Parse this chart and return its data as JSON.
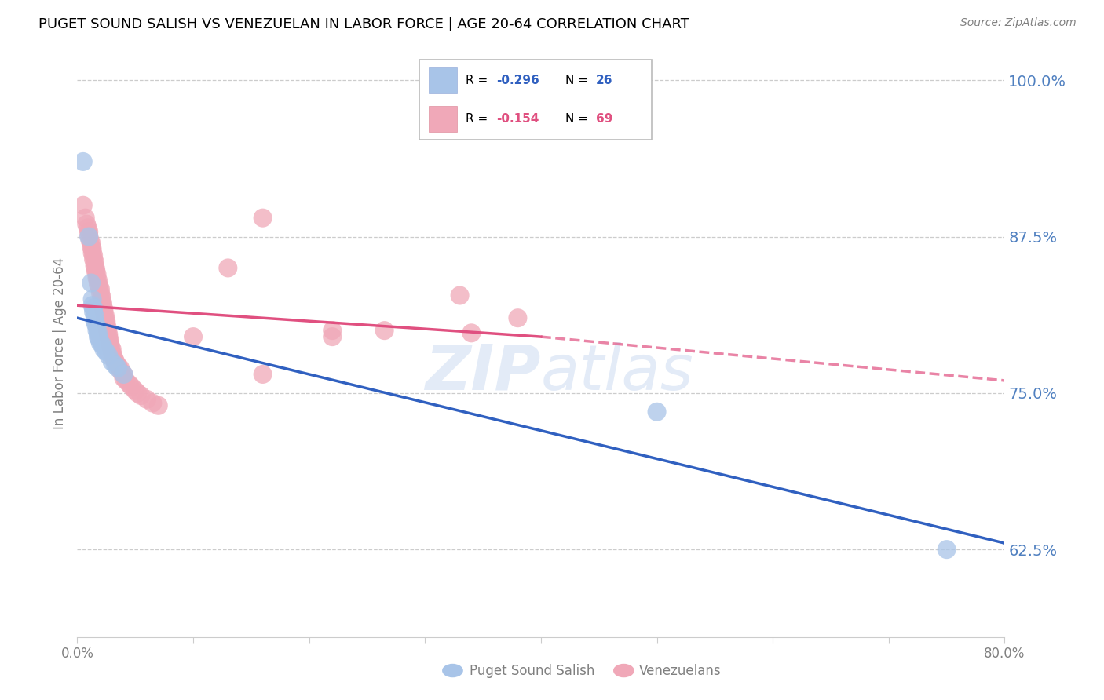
{
  "title": "PUGET SOUND SALISH VS VENEZUELAN IN LABOR FORCE | AGE 20-64 CORRELATION CHART",
  "source": "Source: ZipAtlas.com",
  "ylabel": "In Labor Force | Age 20-64",
  "ytick_labels": [
    "100.0%",
    "87.5%",
    "75.0%",
    "62.5%"
  ],
  "ytick_values": [
    1.0,
    0.875,
    0.75,
    0.625
  ],
  "legend_blue_label": "Puget Sound Salish",
  "legend_pink_label": "Venezuelans",
  "blue_color": "#a8c4e8",
  "pink_color": "#f0a8b8",
  "blue_line_color": "#3060c0",
  "pink_line_color": "#e05080",
  "watermark_color": "#c8d8f0",
  "right_axis_color": "#5080c0",
  "blue_scatter": [
    [
      0.005,
      0.935
    ],
    [
      0.01,
      0.875
    ],
    [
      0.012,
      0.838
    ],
    [
      0.013,
      0.825
    ],
    [
      0.013,
      0.82
    ],
    [
      0.014,
      0.818
    ],
    [
      0.014,
      0.815
    ],
    [
      0.015,
      0.812
    ],
    [
      0.015,
      0.808
    ],
    [
      0.016,
      0.805
    ],
    [
      0.017,
      0.803
    ],
    [
      0.017,
      0.8
    ],
    [
      0.018,
      0.798
    ],
    [
      0.018,
      0.795
    ],
    [
      0.019,
      0.793
    ],
    [
      0.02,
      0.79
    ],
    [
      0.022,
      0.788
    ],
    [
      0.023,
      0.785
    ],
    [
      0.025,
      0.783
    ],
    [
      0.027,
      0.78
    ],
    [
      0.03,
      0.775
    ],
    [
      0.033,
      0.772
    ],
    [
      0.035,
      0.77
    ],
    [
      0.04,
      0.765
    ],
    [
      0.5,
      0.735
    ],
    [
      0.75,
      0.625
    ]
  ],
  "pink_scatter": [
    [
      0.005,
      0.9
    ],
    [
      0.007,
      0.89
    ],
    [
      0.008,
      0.885
    ],
    [
      0.009,
      0.882
    ],
    [
      0.01,
      0.879
    ],
    [
      0.01,
      0.876
    ],
    [
      0.011,
      0.872
    ],
    [
      0.012,
      0.87
    ],
    [
      0.012,
      0.867
    ],
    [
      0.013,
      0.865
    ],
    [
      0.013,
      0.862
    ],
    [
      0.014,
      0.86
    ],
    [
      0.014,
      0.857
    ],
    [
      0.015,
      0.855
    ],
    [
      0.015,
      0.852
    ],
    [
      0.016,
      0.849
    ],
    [
      0.016,
      0.847
    ],
    [
      0.017,
      0.845
    ],
    [
      0.017,
      0.842
    ],
    [
      0.018,
      0.84
    ],
    [
      0.018,
      0.837
    ],
    [
      0.019,
      0.835
    ],
    [
      0.02,
      0.833
    ],
    [
      0.02,
      0.83
    ],
    [
      0.021,
      0.827
    ],
    [
      0.021,
      0.825
    ],
    [
      0.022,
      0.822
    ],
    [
      0.022,
      0.82
    ],
    [
      0.023,
      0.817
    ],
    [
      0.023,
      0.815
    ],
    [
      0.024,
      0.812
    ],
    [
      0.024,
      0.81
    ],
    [
      0.025,
      0.807
    ],
    [
      0.025,
      0.805
    ],
    [
      0.026,
      0.802
    ],
    [
      0.026,
      0.8
    ],
    [
      0.027,
      0.797
    ],
    [
      0.027,
      0.795
    ],
    [
      0.028,
      0.792
    ],
    [
      0.028,
      0.79
    ],
    [
      0.029,
      0.787
    ],
    [
      0.03,
      0.785
    ],
    [
      0.03,
      0.782
    ],
    [
      0.031,
      0.78
    ],
    [
      0.032,
      0.777
    ],
    [
      0.033,
      0.775
    ],
    [
      0.035,
      0.772
    ],
    [
      0.037,
      0.77
    ],
    [
      0.038,
      0.767
    ],
    [
      0.04,
      0.765
    ],
    [
      0.04,
      0.762
    ],
    [
      0.042,
      0.76
    ],
    [
      0.045,
      0.757
    ],
    [
      0.047,
      0.755
    ],
    [
      0.05,
      0.752
    ],
    [
      0.052,
      0.75
    ],
    [
      0.055,
      0.748
    ],
    [
      0.06,
      0.745
    ],
    [
      0.065,
      0.742
    ],
    [
      0.07,
      0.74
    ],
    [
      0.1,
      0.795
    ],
    [
      0.13,
      0.85
    ],
    [
      0.16,
      0.89
    ],
    [
      0.16,
      0.765
    ],
    [
      0.22,
      0.8
    ],
    [
      0.22,
      0.795
    ],
    [
      0.33,
      0.828
    ],
    [
      0.38,
      0.81
    ],
    [
      0.265,
      0.8
    ],
    [
      0.34,
      0.798
    ]
  ],
  "xlim": [
    0.0,
    0.8
  ],
  "ylim": [
    0.555,
    1.025
  ],
  "blue_trendline_solid": [
    [
      0.0,
      0.81
    ],
    [
      0.4,
      0.733
    ]
  ],
  "blue_trendline_full": [
    [
      0.0,
      0.81
    ],
    [
      0.8,
      0.63
    ]
  ],
  "pink_trendline_solid": [
    [
      0.0,
      0.82
    ],
    [
      0.4,
      0.795
    ]
  ],
  "pink_trendline_dashed": [
    [
      0.4,
      0.795
    ],
    [
      0.8,
      0.76
    ]
  ]
}
